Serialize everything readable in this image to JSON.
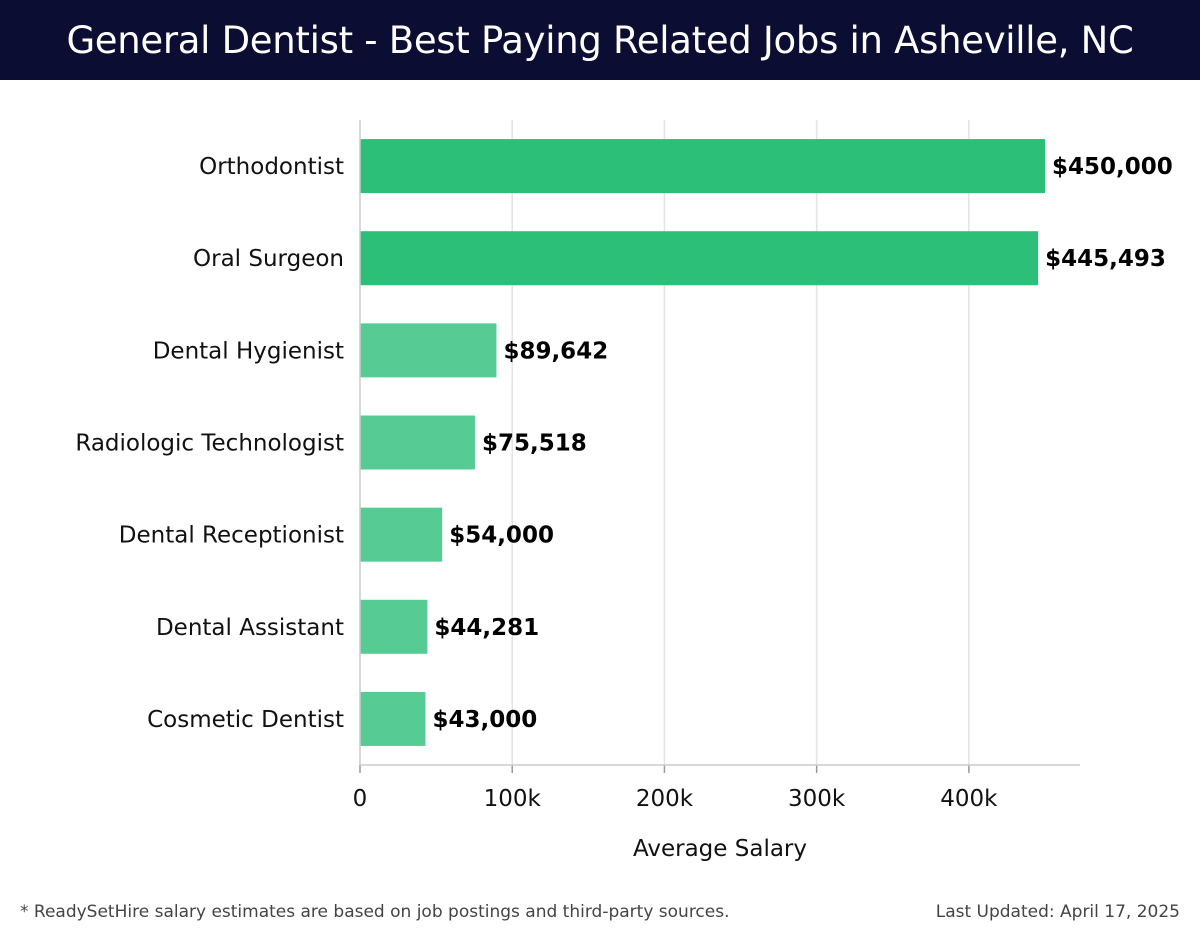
{
  "header": {
    "title": "General Dentist - Best Paying Related Jobs in Asheville, NC"
  },
  "footer": {
    "note": "* ReadySetHire salary estimates are based on job postings and third-party sources.",
    "updated": "Last Updated: April 17, 2025"
  },
  "colors": {
    "header_bg": "#0c0d33",
    "bar_top": "#2bbf78",
    "bar_other": "#56cc94",
    "grid": "#e3e3e3"
  },
  "chart_data": {
    "type": "bar",
    "orientation": "horizontal",
    "categories": [
      "Orthodontist",
      "Oral Surgeon",
      "Dental Hygienist",
      "Radiologic Technologist",
      "Dental Receptionist",
      "Dental Assistant",
      "Cosmetic Dentist"
    ],
    "values": [
      450000,
      445493,
      89642,
      75518,
      54000,
      44281,
      43000
    ],
    "value_labels": [
      "$450,000",
      "$445,493",
      "$89,642",
      "$75,518",
      "$54,000",
      "$44,281",
      "$43,000"
    ],
    "xlabel": "Average Salary",
    "ylabel": "",
    "xlim": [
      0,
      473000
    ],
    "xticks": [
      0,
      100000,
      200000,
      300000,
      400000
    ],
    "xtick_labels": [
      "0",
      "100k",
      "200k",
      "300k",
      "400k"
    ],
    "grid": true,
    "legend": "none"
  }
}
